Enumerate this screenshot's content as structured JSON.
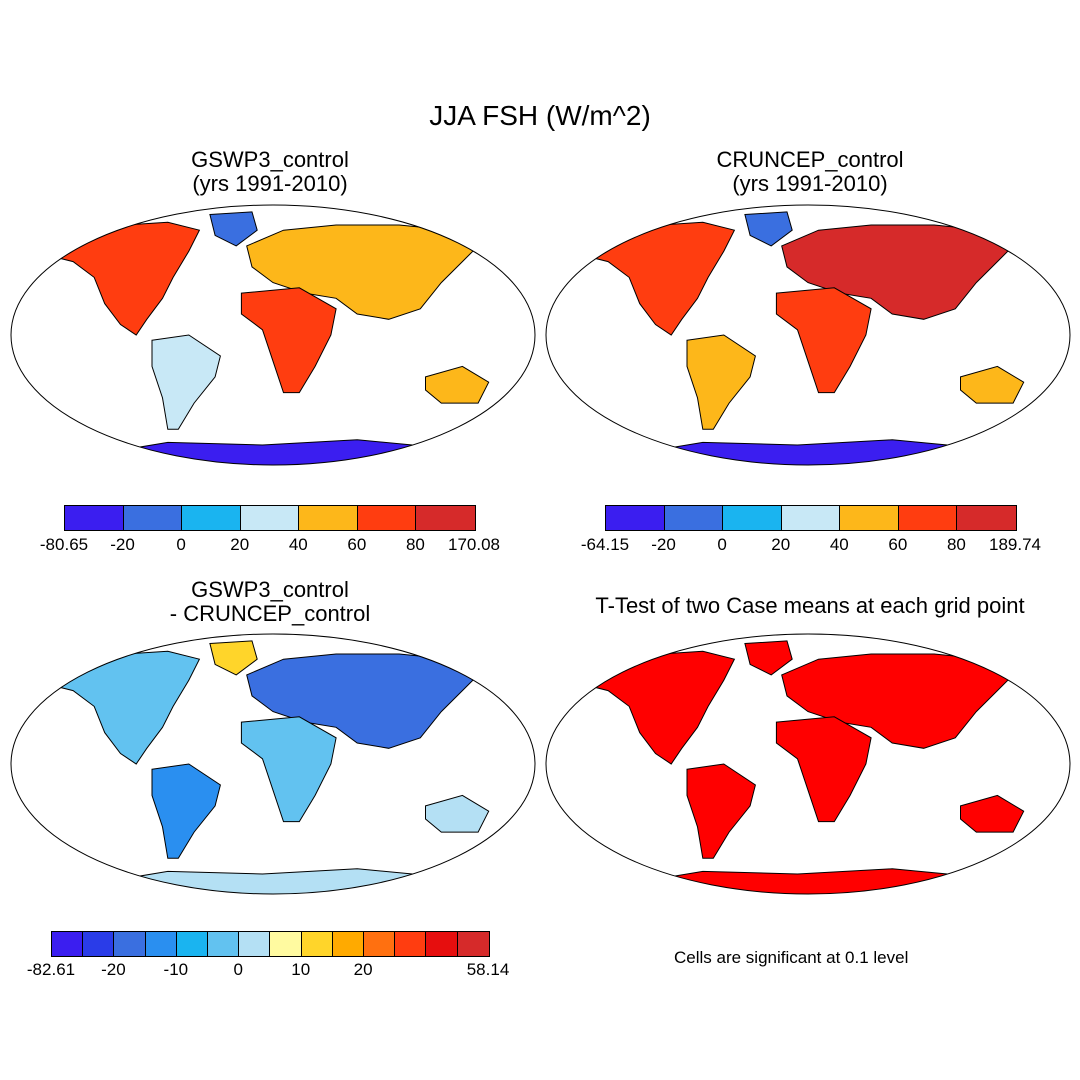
{
  "title": "JJA FSH (W/m^2)",
  "panels": [
    {
      "title_line1": "GSWP3_control",
      "title_line2": "(yrs 1991-2010)",
      "colorbar": {
        "colors": [
          "#3b1ef0",
          "#3a6fe0",
          "#1ab4f0",
          "#c8e8f6",
          "#fdb71a",
          "#ff3d10",
          "#d62a2a"
        ],
        "labels": [
          "-80.65",
          "-20",
          "0",
          "20",
          "40",
          "60",
          "80",
          "170.08"
        ]
      }
    },
    {
      "title_line1": "CRUNCEP_control",
      "title_line2": "(yrs 1991-2010)",
      "colorbar": {
        "colors": [
          "#3b1ef0",
          "#3a6fe0",
          "#1ab4f0",
          "#c8e8f6",
          "#fdb71a",
          "#ff3d10",
          "#d62a2a"
        ],
        "labels": [
          "-64.15",
          "-20",
          "0",
          "20",
          "40",
          "60",
          "80",
          "189.74"
        ]
      }
    },
    {
      "title_line1": "GSWP3_control",
      "title_line2": "- CRUNCEP_control",
      "colorbar": {
        "colors": [
          "#3b1ef0",
          "#2a3ce8",
          "#3a6fe0",
          "#2a8ff0",
          "#1ab4f0",
          "#62c2f0",
          "#b4e0f4",
          "#fffaa0",
          "#ffd52a",
          "#ffaa00",
          "#ff7010",
          "#ff3d10",
          "#e60e0e",
          "#d62a2a"
        ],
        "labels": [
          "-82.61",
          "",
          "-20",
          "",
          "-10",
          "",
          "0",
          "",
          "10",
          "",
          "20",
          "",
          "",
          "",
          "58.14"
        ]
      }
    },
    {
      "title_line1": "T-Test of two Case means at each grid point",
      "note": "Cells are significant at 0.1 level",
      "fill_color": "#ff0000"
    }
  ]
}
